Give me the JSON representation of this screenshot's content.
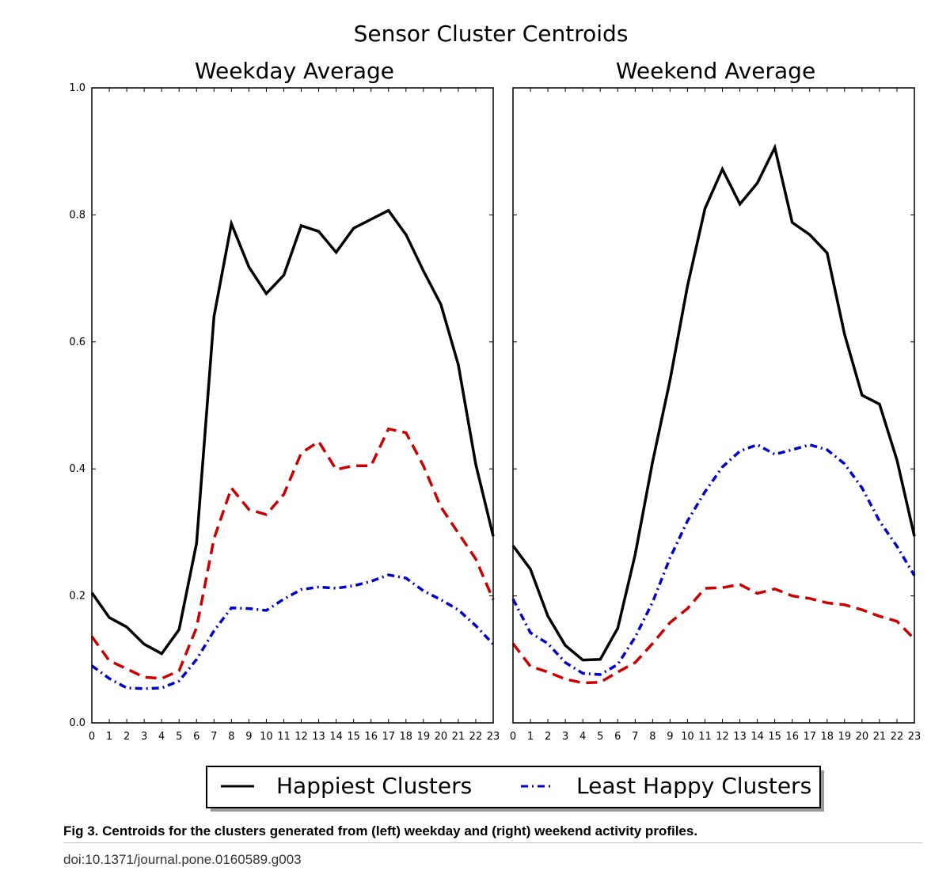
{
  "chart_data": {
    "type": "line",
    "title": "Sensor Cluster Centroids",
    "ylim": [
      0.0,
      1.0
    ],
    "yticks": [
      "0.0",
      "0.2",
      "0.4",
      "0.6",
      "0.8",
      "1.0"
    ],
    "x": [
      0,
      1,
      2,
      3,
      4,
      5,
      6,
      7,
      8,
      9,
      10,
      11,
      12,
      13,
      14,
      15,
      16,
      17,
      18,
      19,
      20,
      21,
      22,
      23
    ],
    "xlim": [
      0,
      23
    ],
    "colors": {
      "happiest": "#000000",
      "middle": "#cc0000",
      "least": "#0000cc"
    },
    "legend": {
      "placement": "bottom-center",
      "entries": [
        "Happiest Clusters",
        "Least Happy Clusters"
      ]
    },
    "panels": [
      {
        "title": "Weekday Average",
        "series": [
          {
            "name": "Happiest Clusters",
            "style": "solid",
            "color": "#000000",
            "values": [
              0.205,
              0.166,
              0.151,
              0.124,
              0.109,
              0.147,
              0.283,
              0.64,
              0.786,
              0.718,
              0.676,
              0.705,
              0.783,
              0.774,
              0.741,
              0.779,
              0.793,
              0.807,
              0.769,
              0.712,
              0.659,
              0.564,
              0.407,
              0.294
            ]
          },
          {
            "name": "",
            "style": "dashed",
            "color": "#cc0000",
            "values": [
              0.136,
              0.098,
              0.085,
              0.072,
              0.07,
              0.082,
              0.15,
              0.29,
              0.37,
              0.336,
              0.328,
              0.36,
              0.425,
              0.443,
              0.399,
              0.405,
              0.405,
              0.463,
              0.457,
              0.405,
              0.34,
              0.299,
              0.258,
              0.194
            ]
          },
          {
            "name": "Least Happy Clusters",
            "style": "dashdot",
            "color": "#0000cc",
            "values": [
              0.09,
              0.07,
              0.055,
              0.054,
              0.055,
              0.066,
              0.1,
              0.145,
              0.181,
              0.18,
              0.177,
              0.195,
              0.21,
              0.214,
              0.212,
              0.216,
              0.223,
              0.233,
              0.228,
              0.208,
              0.194,
              0.178,
              0.153,
              0.124
            ]
          }
        ]
      },
      {
        "title": "Weekend Average",
        "series": [
          {
            "name": "Happiest Clusters",
            "style": "solid",
            "color": "#000000",
            "values": [
              0.279,
              0.242,
              0.168,
              0.122,
              0.099,
              0.1,
              0.149,
              0.265,
              0.411,
              0.54,
              0.688,
              0.81,
              0.872,
              0.817,
              0.85,
              0.906,
              0.788,
              0.769,
              0.74,
              0.612,
              0.516,
              0.502,
              0.414,
              0.294
            ]
          },
          {
            "name": "",
            "style": "dashed",
            "color": "#cc0000",
            "values": [
              0.125,
              0.089,
              0.08,
              0.069,
              0.063,
              0.064,
              0.08,
              0.095,
              0.125,
              0.158,
              0.18,
              0.212,
              0.213,
              0.218,
              0.204,
              0.211,
              0.2,
              0.196,
              0.189,
              0.186,
              0.178,
              0.168,
              0.16,
              0.132
            ]
          },
          {
            "name": "Least Happy Clusters",
            "style": "dashdot",
            "color": "#0000cc",
            "values": [
              0.195,
              0.142,
              0.125,
              0.095,
              0.078,
              0.076,
              0.092,
              0.135,
              0.19,
              0.26,
              0.318,
              0.364,
              0.403,
              0.428,
              0.438,
              0.423,
              0.43,
              0.438,
              0.43,
              0.408,
              0.37,
              0.318,
              0.278,
              0.232
            ]
          }
        ]
      }
    ]
  },
  "caption": "Fig 3.  Centroids for the clusters generated from (left) weekday and (right) weekend activity profiles.",
  "doi": "doi:10.1371/journal.pone.0160589.g003"
}
